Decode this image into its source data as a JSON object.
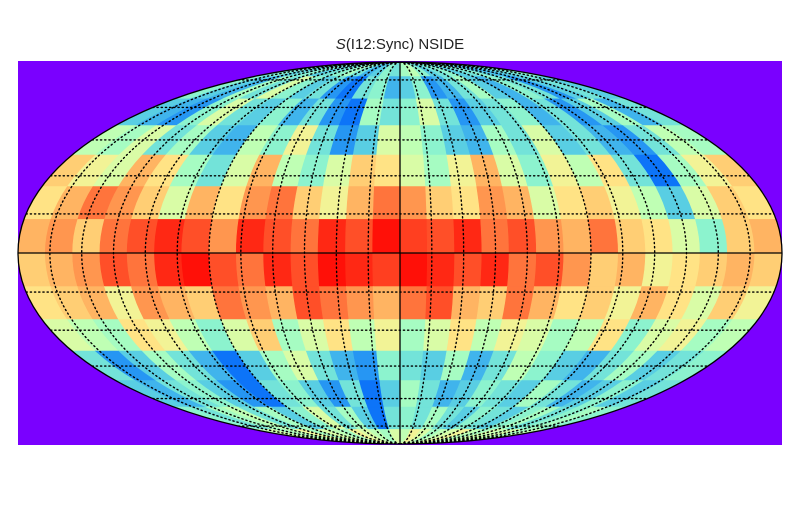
{
  "chart_data": {
    "type": "heatmap",
    "projection": "mollweide",
    "title_symbol": "S",
    "title_rest": "(I12:Sync) NSIDE",
    "title": "S(I12:Sync) NSIDE",
    "colormap": "rainbow",
    "colors": {
      "background": "#7a00ff",
      "graticule": "#000000",
      "outline": "#000000"
    },
    "graticule": {
      "meridian_step_deg": 15,
      "parallel_step_deg": 15,
      "style": "dotted"
    },
    "value_range": [
      0,
      1
    ],
    "grid_rows": 14,
    "grid_cols": 28,
    "rows_north_to_south": [
      [
        0.35,
        0.4,
        0.3,
        0.35,
        0.4,
        0.3,
        0.35,
        0.4,
        0.45,
        0.35,
        0.25,
        0.3,
        0.4,
        0.35,
        0.45,
        0.5,
        0.4,
        0.3,
        0.35,
        0.4,
        0.3,
        0.35,
        0.4,
        0.3,
        0.25,
        0.3,
        0.35,
        0.4
      ],
      [
        0.4,
        0.3,
        0.25,
        0.45,
        0.35,
        0.55,
        0.4,
        0.3,
        0.35,
        0.2,
        0.15,
        0.35,
        0.4,
        0.25,
        0.3,
        0.4,
        0.2,
        0.25,
        0.35,
        0.45,
        0.3,
        0.25,
        0.4,
        0.35,
        0.2,
        0.3,
        0.35,
        0.3
      ],
      [
        0.3,
        0.25,
        0.2,
        0.4,
        0.55,
        0.35,
        0.3,
        0.4,
        0.25,
        0.35,
        0.2,
        0.15,
        0.45,
        0.35,
        0.4,
        0.55,
        0.35,
        0.2,
        0.3,
        0.35,
        0.4,
        0.25,
        0.35,
        0.2,
        0.3,
        0.45,
        0.25,
        0.35
      ],
      [
        0.5,
        0.45,
        0.55,
        0.35,
        0.45,
        0.3,
        0.25,
        0.5,
        0.4,
        0.6,
        0.35,
        0.2,
        0.3,
        0.55,
        0.5,
        0.4,
        0.3,
        0.25,
        0.45,
        0.35,
        0.55,
        0.3,
        0.35,
        0.25,
        0.2,
        0.35,
        0.5,
        0.45
      ],
      [
        0.7,
        0.6,
        0.55,
        0.75,
        0.65,
        0.45,
        0.35,
        0.55,
        0.75,
        0.5,
        0.4,
        0.55,
        0.7,
        0.65,
        0.55,
        0.45,
        0.6,
        0.75,
        0.55,
        0.4,
        0.6,
        0.5,
        0.65,
        0.35,
        0.15,
        0.45,
        0.6,
        0.7
      ],
      [
        0.65,
        0.75,
        0.85,
        0.8,
        0.7,
        0.55,
        0.75,
        0.65,
        0.8,
        0.85,
        0.7,
        0.6,
        0.75,
        0.85,
        0.8,
        0.7,
        0.65,
        0.8,
        0.75,
        0.55,
        0.65,
        0.7,
        0.6,
        0.5,
        0.3,
        0.55,
        0.7,
        0.65
      ],
      [
        0.75,
        0.8,
        0.7,
        0.85,
        0.9,
        0.95,
        0.9,
        0.8,
        0.95,
        0.9,
        0.85,
        0.95,
        0.9,
        0.98,
        0.92,
        0.9,
        0.95,
        0.85,
        0.9,
        0.8,
        0.75,
        0.85,
        0.7,
        0.65,
        0.55,
        0.4,
        0.7,
        0.75
      ],
      [
        0.7,
        0.75,
        0.8,
        0.9,
        0.85,
        0.95,
        0.98,
        0.9,
        0.85,
        0.95,
        0.9,
        0.98,
        0.95,
        0.92,
        0.98,
        0.95,
        0.9,
        0.95,
        0.85,
        0.9,
        0.8,
        0.7,
        0.75,
        0.6,
        0.65,
        0.7,
        0.75,
        0.7
      ],
      [
        0.65,
        0.7,
        0.75,
        0.6,
        0.8,
        0.75,
        0.7,
        0.85,
        0.8,
        0.75,
        0.9,
        0.85,
        0.8,
        0.75,
        0.85,
        0.9,
        0.75,
        0.7,
        0.85,
        0.75,
        0.65,
        0.7,
        0.6,
        0.75,
        0.65,
        0.55,
        0.7,
        0.6
      ],
      [
        0.55,
        0.5,
        0.45,
        0.65,
        0.6,
        0.5,
        0.4,
        0.55,
        0.7,
        0.45,
        0.55,
        0.65,
        0.5,
        0.6,
        0.45,
        0.55,
        0.65,
        0.5,
        0.6,
        0.55,
        0.45,
        0.5,
        0.65,
        0.4,
        0.55,
        0.6,
        0.45,
        0.5
      ],
      [
        0.35,
        0.2,
        0.3,
        0.45,
        0.35,
        0.25,
        0.15,
        0.3,
        0.45,
        0.55,
        0.35,
        0.25,
        0.2,
        0.4,
        0.35,
        0.3,
        0.45,
        0.25,
        0.35,
        0.5,
        0.4,
        0.3,
        0.25,
        0.35,
        0.45,
        0.3,
        0.35,
        0.4
      ],
      [
        0.3,
        0.25,
        0.35,
        0.4,
        0.3,
        0.2,
        0.15,
        0.35,
        0.4,
        0.3,
        0.2,
        0.35,
        0.15,
        0.3,
        0.45,
        0.35,
        0.25,
        0.3,
        0.4,
        0.35,
        0.3,
        0.45,
        0.35,
        0.25,
        0.3,
        0.4,
        0.3,
        0.35
      ],
      [
        0.4,
        0.35,
        0.45,
        0.5,
        0.35,
        0.45,
        0.3,
        0.4,
        0.55,
        0.35,
        0.45,
        0.3,
        0.15,
        0.35,
        0.4,
        0.35,
        0.45,
        0.35,
        0.3,
        0.4,
        0.35,
        0.3,
        0.4,
        0.45,
        0.35,
        0.4,
        0.45,
        0.4
      ],
      [
        0.5,
        0.55,
        0.45,
        0.5,
        0.6,
        0.45,
        0.55,
        0.5,
        0.45,
        0.6,
        0.55,
        0.5,
        0.45,
        0.55,
        0.5,
        0.6,
        0.55,
        0.45,
        0.5,
        0.55,
        0.6,
        0.5,
        0.45,
        0.55,
        0.5,
        0.55,
        0.45,
        0.5
      ]
    ]
  }
}
